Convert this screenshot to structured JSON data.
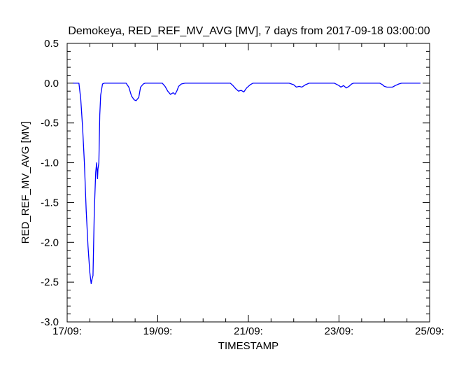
{
  "chart_data": {
    "type": "line",
    "title": "Demokeya, RED_REF_MV_AVG [MV], 7 days from  2017-09-18 03:00:00",
    "xlabel": "TIMESTAMP",
    "ylabel": "RED_REF_MV_AVG [MV]",
    "xlim": [
      0,
      8
    ],
    "ylim": [
      -3.0,
      0.5
    ],
    "x_ticks": [
      {
        "x": 0,
        "label": "17/09:"
      },
      {
        "x": 2,
        "label": "19/09:"
      },
      {
        "x": 4,
        "label": "21/09:"
      },
      {
        "x": 6,
        "label": "23/09:"
      },
      {
        "x": 8,
        "label": "25/09:"
      }
    ],
    "y_ticks": [
      {
        "y": 0.5,
        "label": "0.5"
      },
      {
        "y": 0.0,
        "label": "0.0"
      },
      {
        "y": -0.5,
        "label": "-0.5"
      },
      {
        "y": -1.0,
        "label": "-1.0"
      },
      {
        "y": -1.5,
        "label": "-1.5"
      },
      {
        "y": -2.0,
        "label": "-2.0"
      },
      {
        "y": -2.5,
        "label": "-2.5"
      },
      {
        "y": -3.0,
        "label": "-3.0"
      }
    ],
    "grid": false,
    "series": [
      {
        "color": "#0000ff",
        "x": [
          0.13,
          0.26,
          0.3,
          0.34,
          0.38,
          0.42,
          0.46,
          0.5,
          0.53,
          0.55,
          0.57,
          0.6,
          0.63,
          0.65,
          0.67,
          0.68,
          0.7,
          0.72,
          0.74,
          0.78,
          0.82,
          0.86,
          0.9,
          0.94,
          0.98,
          1.02,
          1.06,
          1.1,
          1.12,
          1.2,
          1.3,
          1.36,
          1.42,
          1.48,
          1.52,
          1.58,
          1.62,
          1.68,
          1.72,
          1.8,
          2.1,
          2.16,
          2.22,
          2.28,
          2.34,
          2.38,
          2.42,
          2.46,
          2.52,
          2.6,
          2.66,
          2.7,
          2.74,
          2.78,
          2.82,
          2.86,
          2.9,
          3.0,
          3.6,
          3.66,
          3.72,
          3.78,
          3.84,
          3.9,
          3.96,
          4.04,
          4.1,
          4.16,
          4.2,
          4.24,
          4.3,
          4.4,
          4.9,
          5.0,
          5.06,
          5.12,
          5.18,
          5.26,
          5.34,
          5.4,
          5.46,
          5.5,
          5.6,
          5.9,
          6.0,
          6.04,
          6.1,
          6.16,
          6.22,
          6.28,
          6.32,
          6.4,
          6.9,
          6.96,
          7.0,
          7.06,
          7.12,
          7.18,
          7.24,
          7.32,
          7.38,
          7.45,
          7.5,
          7.6,
          7.8
        ],
        "y": [
          0.0,
          0.0,
          -0.2,
          -0.55,
          -1.0,
          -1.6,
          -2.05,
          -2.38,
          -2.52,
          -2.46,
          -2.42,
          -1.6,
          -1.12,
          -1.0,
          -1.2,
          -1.08,
          -1.0,
          -0.4,
          -0.15,
          -0.01,
          0.0,
          0.0,
          0.0,
          0.0,
          0.0,
          0.0,
          0.0,
          0.0,
          0.0,
          0.0,
          0.0,
          -0.05,
          -0.16,
          -0.21,
          -0.22,
          -0.18,
          -0.05,
          -0.01,
          0.0,
          0.0,
          0.0,
          -0.04,
          -0.1,
          -0.14,
          -0.12,
          -0.14,
          -0.1,
          -0.04,
          -0.01,
          0.0,
          0.0,
          0.0,
          0.0,
          0.0,
          0.0,
          0.0,
          0.0,
          0.0,
          0.0,
          -0.03,
          -0.07,
          -0.1,
          -0.09,
          -0.11,
          -0.06,
          -0.02,
          0.0,
          0.0,
          0.0,
          0.0,
          0.0,
          0.0,
          0.0,
          -0.02,
          -0.05,
          -0.04,
          -0.05,
          -0.02,
          0.0,
          0.0,
          0.0,
          0.0,
          0.0,
          0.0,
          -0.03,
          -0.05,
          -0.03,
          -0.06,
          -0.04,
          -0.01,
          0.0,
          0.0,
          0.0,
          -0.02,
          -0.04,
          -0.05,
          -0.05,
          -0.05,
          -0.03,
          -0.01,
          0.0,
          0.0,
          0.0,
          0.0,
          0.0
        ]
      }
    ]
  }
}
